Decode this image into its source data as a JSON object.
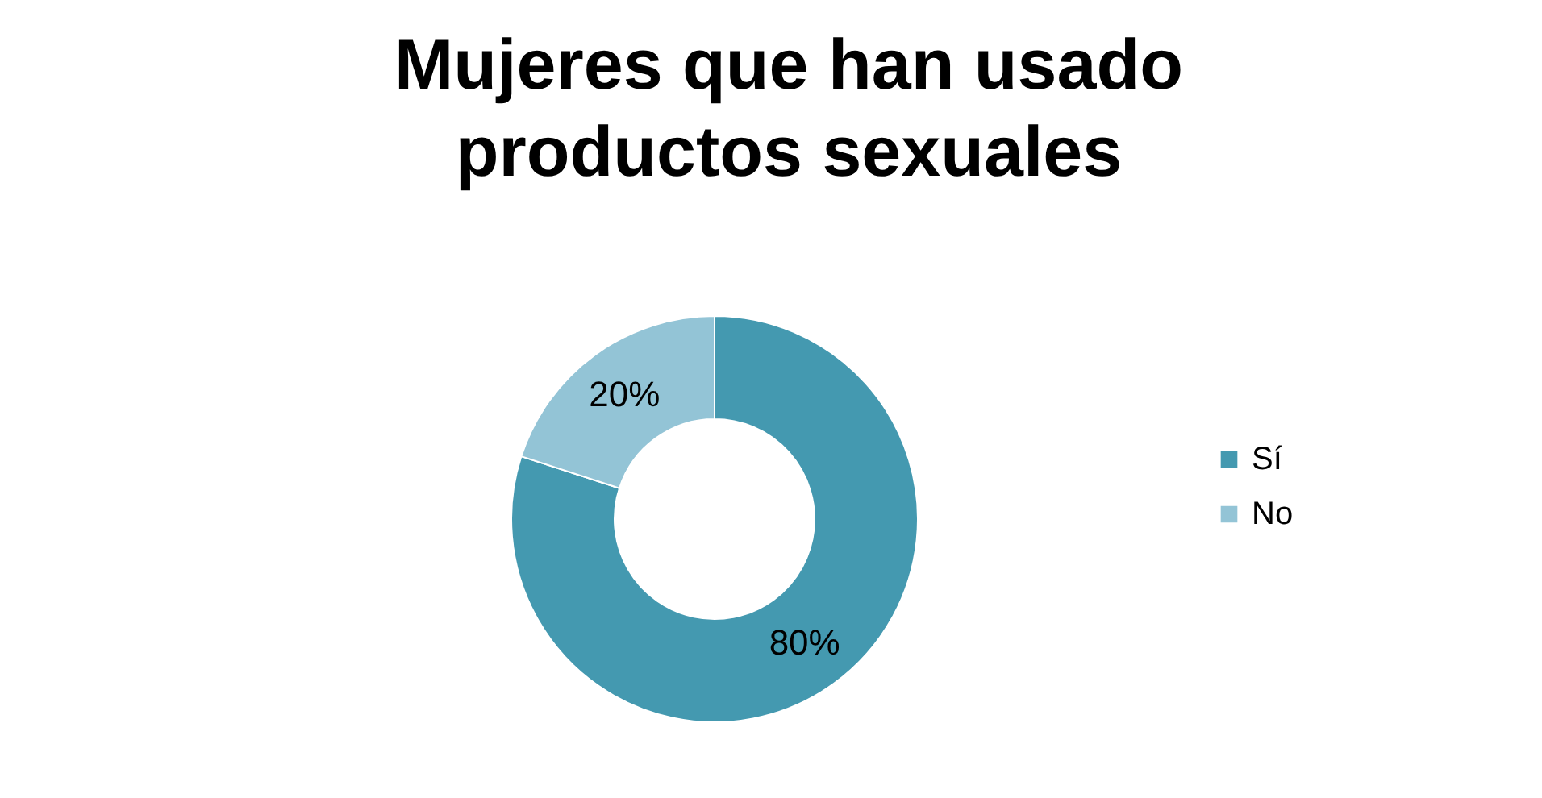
{
  "chart_data": {
    "type": "donut",
    "title": [
      "Mujeres que han usado",
      "productos sexuales"
    ],
    "categories": [
      "Sí",
      "No"
    ],
    "values": [
      80,
      20
    ],
    "colors": [
      "#4499b0",
      "#93c4d6"
    ],
    "value_labels": [
      "80%",
      "20%"
    ],
    "legend": "right"
  }
}
